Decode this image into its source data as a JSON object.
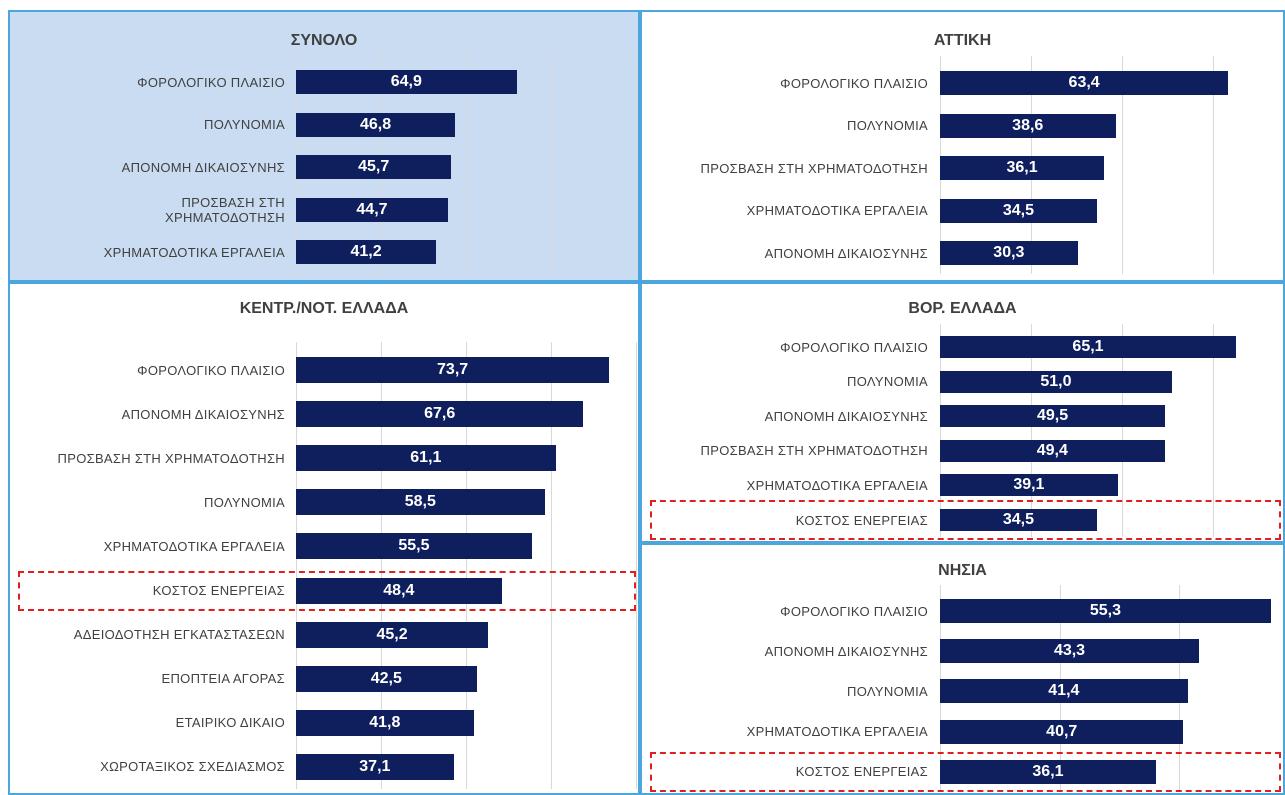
{
  "chart_data": [
    {
      "type": "bar",
      "title": "ΣΥΝΟΛΟ",
      "categories": [
        "ΦΟΡΟΛΟΓΙΚΟ ΠΛΑΙΣΙΟ",
        "ΠΟΛΥΝΟΜΙΑ",
        "ΑΠΟΝΟΜΗ ΔΙΚΑΙΟΣΥΝΗΣ",
        "ΠΡΟΣΒΑΣΗ ΣΤΗ\nΧΡΗΜΑΤΟΔΟΤΗΣΗ",
        "ΧΡΗΜΑΤΟΔΟΤΙΚΑ ΕΡΓΑΛΕΙΑ"
      ],
      "values": [
        64.9,
        46.8,
        45.7,
        44.7,
        41.2
      ],
      "value_labels": [
        "64,9",
        "46,8",
        "45,7",
        "44,7",
        "41,2"
      ],
      "color": "#0f1f5e",
      "background": "#c9dcf1",
      "xlim": [
        0,
        100
      ],
      "xticks": [
        0,
        25,
        50,
        75,
        100
      ],
      "grid": true
    },
    {
      "type": "bar",
      "title": "ΑΤΤΙΚΗ",
      "categories": [
        "ΦΟΡΟΛΟΓΙΚΟ ΠΛΑΙΣΙΟ",
        "ΠΟΛΥΝΟΜΙΑ",
        "ΠΡΟΣΒΑΣΗ ΣΤΗ ΧΡΗΜΑΤΟΔΟΤΗΣΗ",
        "ΧΡΗΜΑΤΟΔΟΤΙΚΑ ΕΡΓΑΛΕΙΑ",
        "ΑΠΟΝΟΜΗ ΔΙΚΑΙΟΣΥΝΗΣ"
      ],
      "values": [
        63.4,
        38.6,
        36.1,
        34.5,
        30.3
      ],
      "value_labels": [
        "63,4",
        "38,6",
        "36,1",
        "34,5",
        "30,3"
      ],
      "color": "#0f1f5e",
      "background": "#ffffff",
      "xlim": [
        0,
        75
      ],
      "xticks": [
        0,
        20,
        40,
        60
      ],
      "grid": true
    },
    {
      "type": "bar",
      "title": "ΚΕΝΤΡ./ΝΟΤ. ΕΛΛΑΔΑ",
      "categories": [
        "ΦΟΡΟΛΟΓΙΚΟ ΠΛΑΙΣΙΟ",
        "ΑΠΟΝΟΜΗ ΔΙΚΑΙΟΣΥΝΗΣ",
        "ΠΡΟΣΒΑΣΗ ΣΤΗ ΧΡΗΜΑΤΟΔΟΤΗΣΗ",
        "ΠΟΛΥΝΟΜΙΑ",
        "ΧΡΗΜΑΤΟΔΟΤΙΚΑ ΕΡΓΑΛΕΙΑ",
        "ΚΟΣΤΟΣ ΕΝΕΡΓΕΙΑΣ",
        "ΑΔΕΙΟΔΟΤΗΣΗ ΕΓΚΑΤΑΣΤΑΣΕΩΝ",
        "ΕΠΟΠΤΕΙΑ ΑΓΟΡΑΣ",
        "ΕΤΑΙΡΙΚΟ ΔΙΚΑΙΟ",
        "ΧΩΡΟΤΑΞΙΚΟΣ ΣΧΕΔΙΑΣΜΟΣ"
      ],
      "values": [
        73.7,
        67.6,
        61.1,
        58.5,
        55.5,
        48.4,
        45.2,
        42.5,
        41.8,
        37.1
      ],
      "value_labels": [
        "73,7",
        "67,6",
        "61,1",
        "58,5",
        "55,5",
        "48,4",
        "45,2",
        "42,5",
        "41,8",
        "37,1"
      ],
      "color": "#0f1f5e",
      "background": "#ffffff",
      "xlim": [
        0,
        80
      ],
      "xticks": [
        0,
        20,
        40,
        60,
        80
      ],
      "grid": true,
      "highlight": 5
    },
    {
      "type": "bar",
      "title": "ΒΟΡ. ΕΛΛΑΔΑ",
      "categories": [
        "ΦΟΡΟΛΟΓΙΚΟ ΠΛΑΙΣΙΟ",
        "ΠΟΛΥΝΟΜΙΑ",
        "ΑΠΟΝΟΜΗ ΔΙΚΑΙΟΣΥΝΗΣ",
        "ΠΡΟΣΒΑΣΗ ΣΤΗ ΧΡΗΜΑΤΟΔΟΤΗΣΗ",
        "ΧΡΗΜΑΤΟΔΟΤΙΚΑ ΕΡΓΑΛΕΙΑ",
        "ΚΟΣΤΟΣ ΕΝΕΡΓΕΙΑΣ"
      ],
      "values": [
        65.1,
        51.0,
        49.5,
        49.4,
        39.1,
        34.5
      ],
      "value_labels": [
        "65,1",
        "51,0",
        "49,5",
        "49,4",
        "39,1",
        "34,5"
      ],
      "color": "#0f1f5e",
      "background": "#ffffff",
      "xlim": [
        0,
        75
      ],
      "xticks": [
        0,
        20,
        40,
        60
      ],
      "grid": true,
      "highlight": 5
    },
    {
      "type": "bar",
      "title": "ΝΗΣΙΑ",
      "categories": [
        "ΦΟΡΟΛΟΓΙΚΟ ΠΛΑΙΣΙΟ",
        "ΑΠΟΝΟΜΗ ΔΙΚΑΙΟΣΥΝΗΣ",
        "ΠΟΛΥΝΟΜΙΑ",
        "ΧΡΗΜΑΤΟΔΟΤΙΚΑ ΕΡΓΑΛΕΙΑ",
        "ΚΟΣΤΟΣ ΕΝΕΡΓΕΙΑΣ"
      ],
      "values": [
        55.3,
        43.3,
        41.4,
        40.7,
        36.1
      ],
      "value_labels": [
        "55,3",
        "43,3",
        "41,4",
        "40,7",
        "36,1"
      ],
      "color": "#0f1f5e",
      "background": "#ffffff",
      "xlim": [
        0,
        57
      ],
      "xticks": [
        0,
        20,
        40
      ],
      "grid": true,
      "highlight": 4
    }
  ]
}
